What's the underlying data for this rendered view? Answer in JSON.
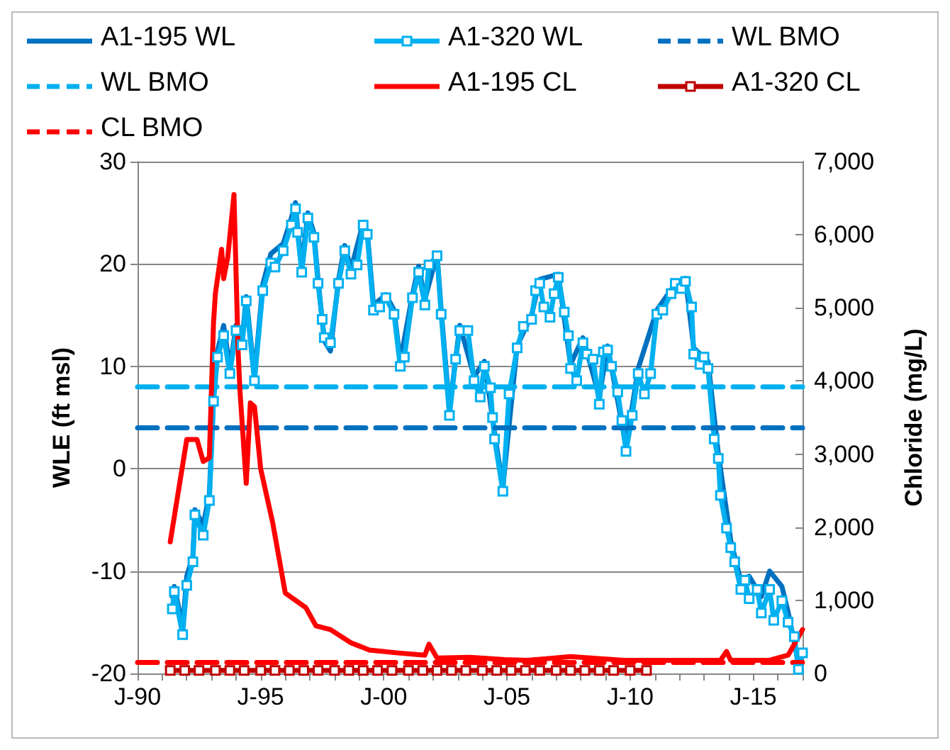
{
  "chart_data": {
    "type": "line",
    "ylabel": "WLE (ft msl)",
    "y2label": "Chloride (mg/L)",
    "xlim": [
      "1990-01",
      "2017-01"
    ],
    "ylim": [
      -20,
      30
    ],
    "y2lim": [
      0,
      7000
    ],
    "xticks": [
      {
        "value": "1990-01",
        "label": "J-90"
      },
      {
        "value": "1991-01",
        "label": null
      },
      {
        "value": "1992-01",
        "label": null
      },
      {
        "value": "1993-01",
        "label": null
      },
      {
        "value": "1994-01",
        "label": null
      },
      {
        "value": "1995-01",
        "label": "J-95"
      },
      {
        "value": "1996-01",
        "label": null
      },
      {
        "value": "1997-01",
        "label": null
      },
      {
        "value": "1998-01",
        "label": null
      },
      {
        "value": "1999-01",
        "label": null
      },
      {
        "value": "2000-01",
        "label": "J-00"
      },
      {
        "value": "2001-01",
        "label": null
      },
      {
        "value": "2002-01",
        "label": null
      },
      {
        "value": "2003-01",
        "label": null
      },
      {
        "value": "2004-01",
        "label": null
      },
      {
        "value": "2005-01",
        "label": "J-05"
      },
      {
        "value": "2006-01",
        "label": null
      },
      {
        "value": "2007-01",
        "label": null
      },
      {
        "value": "2008-01",
        "label": null
      },
      {
        "value": "2009-01",
        "label": null
      },
      {
        "value": "2010-01",
        "label": "J-10"
      },
      {
        "value": "2011-01",
        "label": null
      },
      {
        "value": "2012-01",
        "label": null
      },
      {
        "value": "2013-01",
        "label": null
      },
      {
        "value": "2014-01",
        "label": null
      },
      {
        "value": "2015-01",
        "label": "J-15"
      },
      {
        "value": "2016-01",
        "label": null
      },
      {
        "value": "2017-01",
        "label": null
      }
    ],
    "yticks": [
      -20,
      -10,
      0,
      10,
      20,
      30
    ],
    "y2ticks": [
      0,
      {
        "value": 1000,
        "label": "1,000"
      },
      {
        "value": 2000,
        "label": "2,000"
      },
      {
        "value": 3000,
        "label": "3,000"
      },
      {
        "value": 4000,
        "label": "4,000"
      },
      {
        "value": 5000,
        "label": "5,000"
      },
      {
        "value": 6000,
        "label": "6,000"
      },
      {
        "value": 7000,
        "label": "7,000"
      }
    ],
    "grid": "y",
    "legend": "top",
    "series": [
      {
        "name": "A1-195 WL",
        "color": "#0070c0",
        "marker": "none",
        "line_style": "solid",
        "x": [
          "1991-06",
          "1991-07",
          "1991-11",
          "1992-01",
          "1992-04",
          "1992-05",
          "1992-09",
          "1992-12",
          "1993-02",
          "1993-04",
          "1993-07",
          "1993-10",
          "1994-01",
          "1994-04",
          "1994-06",
          "1994-10",
          "1995-02",
          "1995-06",
          "1995-12",
          "1996-04",
          "1996-06",
          "1996-07",
          "1996-09",
          "1996-12",
          "1997-03",
          "1997-05",
          "1997-08",
          "1997-11",
          "1998-03",
          "1998-06",
          "1998-09",
          "1999-03",
          "1999-05",
          "1999-08",
          "2000-02",
          "2000-06",
          "2000-09",
          "2001-03",
          "2001-06",
          "2001-09",
          "2002-03",
          "2002-05",
          "2002-09",
          "2003-02",
          "2003-09",
          "2004-02",
          "2004-07",
          "2004-11",
          "2005-06",
          "2006-01",
          "2006-05",
          "2007-02",
          "2007-08",
          "2008-02",
          "2008-10",
          "2009-02",
          "2009-11",
          "2010-05",
          "2011-02",
          "2011-09",
          "2012-04",
          "2012-08",
          "2013-03",
          "2013-08",
          "2014-02",
          "2014-07",
          "2014-11",
          "2015-05",
          "2015-09",
          "2016-03",
          "2016-06",
          "2016-11",
          "2017-01"
        ],
        "values": [
          -12.5,
          -11.5,
          -15.5,
          -10.5,
          -8.5,
          -4.0,
          -5.5,
          -2.5,
          7.0,
          11.5,
          14.0,
          9.8,
          14.0,
          12.5,
          16.8,
          9.0,
          18.0,
          21.0,
          22.0,
          24.5,
          26.0,
          23.5,
          19.8,
          25.0,
          23.0,
          18.5,
          12.5,
          11.5,
          18.5,
          21.8,
          19.5,
          24.0,
          23.2,
          16.0,
          17.0,
          15.5,
          10.5,
          17.0,
          19.8,
          16.5,
          21.0,
          15.5,
          5.8,
          14.0,
          9.0,
          10.5,
          3.5,
          -1.8,
          12.0,
          15.0,
          18.5,
          19.0,
          10.2,
          12.8,
          7.0,
          12.0,
          2.2,
          9.8,
          15.5,
          17.5,
          18.6,
          11.8,
          10.5,
          1.5,
          -7.0,
          -11.0,
          -10.5,
          -12.5,
          -10.0,
          -11.5,
          -14.0,
          -19.0,
          -18.0
        ]
      },
      {
        "name": "A1-320 WL",
        "color": "#00b0f0",
        "marker": "square",
        "line_style": "solid",
        "x": [
          "1991-06",
          "1991-07",
          "1991-11",
          "1992-01",
          "1992-04",
          "1992-05",
          "1992-09",
          "1992-12",
          "1993-02",
          "1993-04",
          "1993-07",
          "1993-10",
          "1994-01",
          "1994-04",
          "1994-06",
          "1994-10",
          "1995-02",
          "1995-06",
          "1995-08",
          "1995-12",
          "1996-04",
          "1996-06",
          "1996-07",
          "1996-09",
          "1996-12",
          "1997-03",
          "1997-05",
          "1997-07",
          "1997-08",
          "1997-11",
          "1998-03",
          "1998-06",
          "1998-09",
          "1998-12",
          "1999-03",
          "1999-05",
          "1999-08",
          "1999-11",
          "2000-02",
          "2000-06",
          "2000-09",
          "2000-11",
          "2001-03",
          "2001-06",
          "2001-09",
          "2001-11",
          "2002-03",
          "2002-05",
          "2002-09",
          "2002-12",
          "2003-02",
          "2003-06",
          "2003-09",
          "2003-12",
          "2004-02",
          "2004-05",
          "2004-06",
          "2004-07",
          "2004-11",
          "2005-02",
          "2005-06",
          "2005-09",
          "2006-01",
          "2006-03",
          "2006-05",
          "2006-07",
          "2006-10",
          "2006-12",
          "2007-02",
          "2007-05",
          "2007-07",
          "2007-08",
          "2007-11",
          "2008-02",
          "2008-04",
          "2008-07",
          "2008-10",
          "2008-12",
          "2009-02",
          "2009-04",
          "2009-07",
          "2009-09",
          "2009-11",
          "2010-02",
          "2010-05",
          "2010-08",
          "2010-11",
          "2011-02",
          "2011-05",
          "2011-09",
          "2011-11",
          "2012-02",
          "2012-04",
          "2012-07",
          "2012-08",
          "2012-11",
          "2013-01",
          "2013-03",
          "2013-06",
          "2013-08",
          "2013-09",
          "2013-12",
          "2014-02",
          "2014-04",
          "2014-07",
          "2014-09",
          "2014-11",
          "2015-03",
          "2015-05",
          "2015-09",
          "2015-11",
          "2016-03",
          "2016-06",
          "2016-09",
          "2016-11",
          "2017-01"
        ],
        "values": [
          -13.7,
          -12.0,
          -16.2,
          -11.4,
          -9.1,
          -4.5,
          -6.5,
          -3.1,
          6.6,
          10.9,
          13.0,
          9.3,
          13.5,
          12.1,
          16.4,
          8.6,
          17.4,
          20.1,
          19.7,
          21.3,
          23.8,
          25.4,
          23.1,
          19.2,
          24.5,
          22.6,
          18.1,
          14.6,
          12.8,
          12.3,
          18.1,
          21.3,
          19.0,
          19.9,
          23.8,
          22.9,
          15.5,
          15.8,
          16.7,
          15.1,
          10.0,
          10.9,
          16.7,
          19.2,
          16.0,
          19.9,
          20.8,
          15.1,
          5.2,
          10.7,
          13.5,
          13.5,
          8.6,
          7.0,
          10.0,
          7.9,
          5.0,
          2.9,
          -2.2,
          7.3,
          11.8,
          13.9,
          14.6,
          17.4,
          18.1,
          15.8,
          14.8,
          17.1,
          18.7,
          15.3,
          13.0,
          9.8,
          8.6,
          12.3,
          11.2,
          10.7,
          6.3,
          11.4,
          11.6,
          10.0,
          7.5,
          4.7,
          1.7,
          5.2,
          9.3,
          7.3,
          9.3,
          15.1,
          15.5,
          17.1,
          18.1,
          17.6,
          18.3,
          15.8,
          11.2,
          10.2,
          10.9,
          9.8,
          2.9,
          1.0,
          -2.6,
          -5.8,
          -7.7,
          -9.1,
          -11.8,
          -10.9,
          -12.7,
          -11.8,
          -14.1,
          -11.8,
          -14.8,
          -12.9,
          -15.0,
          -16.4,
          -19.6,
          -18.0
        ]
      },
      {
        "name": "WL BMO",
        "color": "#0070c0",
        "marker": "none",
        "line_style": "dashed",
        "x": [
          "1990-01",
          "2017-01"
        ],
        "values": [
          4,
          4
        ]
      },
      {
        "name": "WL BMO",
        "color": "#00b0f0",
        "marker": "none",
        "line_style": "dashed",
        "x": [
          "1990-01",
          "2017-01"
        ],
        "values": [
          8,
          8
        ]
      },
      {
        "name": "A1-195 CL",
        "color": "#ff0000",
        "marker": "none",
        "line_style": "solid",
        "axis": "y2",
        "x": [
          "1991-05",
          "1992-01",
          "1992-06",
          "1992-09",
          "1992-12",
          "1993-02",
          "1993-03",
          "1993-06",
          "1993-07",
          "1993-09",
          "1993-12",
          "1994-02",
          "1994-03",
          "1994-06",
          "1994-08",
          "1994-10",
          "1995-01",
          "1995-07",
          "1996-01",
          "1996-11",
          "1997-04",
          "1997-11",
          "1998-09",
          "1999-06",
          "2000-08",
          "2001-09",
          "2001-11",
          "2002-03",
          "2003-07",
          "2004-12",
          "2005-11",
          "2007-08",
          "2009-10",
          "2011-10",
          "2013-09",
          "2013-12",
          "2014-02",
          "2015-09",
          "2016-06",
          "2016-11",
          "2017-01"
        ],
        "values": [
          1800,
          3200,
          3200,
          2900,
          2950,
          4800,
          5200,
          5800,
          5400,
          5700,
          6550,
          4400,
          3850,
          2600,
          3700,
          3650,
          2800,
          2050,
          1100,
          900,
          650,
          600,
          420,
          320,
          280,
          250,
          400,
          210,
          220,
          190,
          180,
          230,
          180,
          180,
          180,
          300,
          180,
          180,
          250,
          500,
          600
        ]
      },
      {
        "name": "A1-320 CL",
        "color": "#c00000",
        "marker": "square",
        "line_style": "solid",
        "axis": "y2",
        "x": [
          "1991-05",
          "1991-12",
          "1992-07",
          "1993-03",
          "1993-10",
          "1994-05",
          "1995-01",
          "1995-08",
          "1996-03",
          "1996-10",
          "1997-05",
          "1998-01",
          "1998-08",
          "1999-03",
          "1999-10",
          "2000-05",
          "2001-01",
          "2001-08",
          "2002-03",
          "2002-10",
          "2003-05",
          "2004-01",
          "2004-08",
          "2005-03",
          "2005-10",
          "2006-05",
          "2007-01",
          "2007-08",
          "2008-03",
          "2008-10",
          "2009-05",
          "2010-01",
          "2010-09"
        ],
        "values": [
          40,
          40,
          40,
          40,
          40,
          40,
          40,
          40,
          40,
          40,
          40,
          40,
          40,
          40,
          40,
          40,
          40,
          40,
          40,
          40,
          40,
          40,
          40,
          40,
          40,
          40,
          40,
          40,
          40,
          40,
          40,
          40,
          40
        ]
      },
      {
        "name": "CL BMO",
        "color": "#ff0000",
        "marker": "none",
        "line_style": "dashed",
        "axis": "y2",
        "x": [
          "1990-01",
          "2017-01"
        ],
        "values": [
          150,
          150
        ]
      }
    ]
  }
}
